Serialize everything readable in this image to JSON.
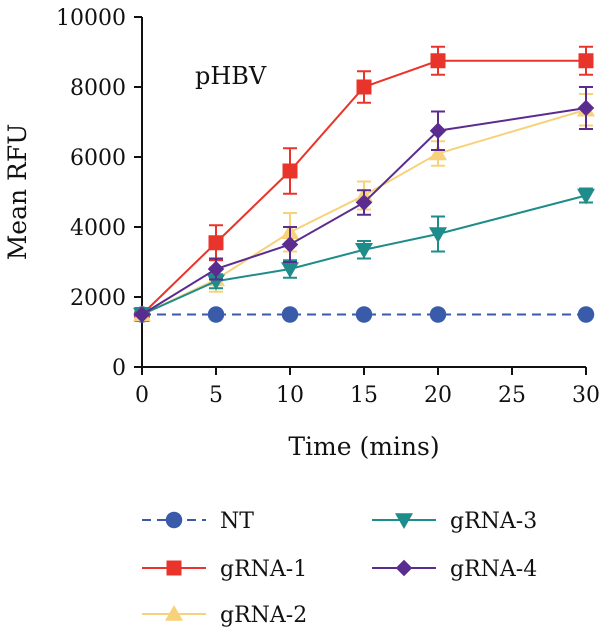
{
  "chart_data": {
    "type": "line",
    "annotation": "pHBV",
    "xlabel": "Time (mins)",
    "ylabel": "Mean RFU",
    "xlim": [
      0,
      30
    ],
    "ylim": [
      0,
      10000
    ],
    "xticks": [
      0,
      5,
      10,
      15,
      20,
      25,
      30
    ],
    "yticks": [
      0,
      2000,
      4000,
      6000,
      8000,
      10000
    ],
    "grid": false,
    "legend_position": "bottom",
    "x": [
      0,
      5,
      10,
      15,
      20,
      30
    ],
    "series": [
      {
        "name": "NT",
        "color": "#3A5BA9",
        "marker": "circle",
        "dash": true,
        "values": [
          1500,
          1500,
          1500,
          1500,
          1500,
          1500
        ],
        "errors": [
          0,
          0,
          0,
          0,
          0,
          0
        ]
      },
      {
        "name": "gRNA-1",
        "color": "#E8342A",
        "marker": "square",
        "dash": false,
        "values": [
          1500,
          3550,
          5600,
          8000,
          8750,
          8750
        ],
        "errors": [
          0,
          500,
          650,
          450,
          400,
          400
        ]
      },
      {
        "name": "gRNA-2",
        "color": "#F7D27A",
        "marker": "triangle-up",
        "dash": false,
        "values": [
          1500,
          2500,
          3850,
          4900,
          6100,
          7350
        ],
        "errors": [
          0,
          350,
          550,
          400,
          350,
          450
        ]
      },
      {
        "name": "gRNA-3",
        "color": "#1E8C8A",
        "marker": "triangle-down",
        "dash": false,
        "values": [
          1500,
          2450,
          2800,
          3350,
          3800,
          4900
        ],
        "errors": [
          0,
          200,
          250,
          250,
          500,
          200
        ]
      },
      {
        "name": "gRNA-4",
        "color": "#5B2C8F",
        "marker": "diamond",
        "dash": false,
        "values": [
          1500,
          2800,
          3500,
          4700,
          6750,
          7400
        ],
        "errors": [
          0,
          300,
          500,
          350,
          550,
          600
        ]
      }
    ]
  }
}
